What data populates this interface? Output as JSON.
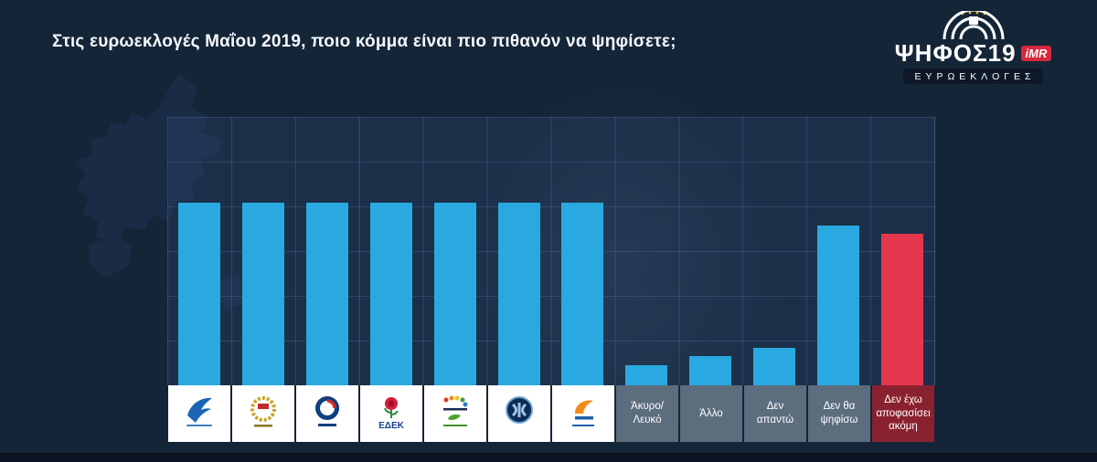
{
  "header": {
    "title": "Στις ευρωεκλογές Μαΐου 2019, ποιο κόμμα είναι πιο πιθανόν να ψηφίσετε;"
  },
  "brand": {
    "name": "ΨΗΦΟΣ",
    "year": "19",
    "imr_label": "iMR",
    "subtitle": "ΕΥΡΩΕΚΛΟΓΕΣ"
  },
  "colors": {
    "background": "#152538",
    "bar_blue": "#29a9e0",
    "bar_red": "#e4374d",
    "cell_white": "#ffffff",
    "cell_gray": "#5c6d7e",
    "cell_red": "#8a2130",
    "brand_red": "#d6283c"
  },
  "chart_data": {
    "type": "bar",
    "title": "Στις ευρωεκλογές Μαΐου 2019, ποιο κόμμα είναι πιο πιθανόν να ψηφίσετε;",
    "xlabel": "",
    "ylabel": "",
    "numeric_axis": false,
    "grid": true,
    "legend": false,
    "values_unit": "percent of plot height (no numeric values shown on chart)",
    "categories": [
      "Δημοκρατικός Συναγερμός (ΔΗΣΥ)",
      "ΑΚΕΛ",
      "ΔΗΚΟ",
      "ΕΔΕΚ",
      "Συμμαχία Πολιτών – Οικολόγοι",
      "ΕΛΑΜ",
      "Δημοκρατική Παράταξη",
      "Άκυρο/Λευκό",
      "Άλλο",
      "Δεν απαντώ",
      "Δεν θα ψηφίσω",
      "Δεν έχω αποφασίσει ακόμη"
    ],
    "values": [
      68,
      68,
      68,
      68,
      68,
      68,
      68,
      7.5,
      11,
      14,
      59.5,
      56.5
    ],
    "columns": [
      {
        "kind": "logo",
        "logo": "disy-bird-logo",
        "bar_color": "#29a9e0",
        "value_pct": 68
      },
      {
        "kind": "logo",
        "logo": "akel-wreath-logo",
        "bar_color": "#29a9e0",
        "value_pct": 68
      },
      {
        "kind": "logo",
        "logo": "diko-emblem-logo",
        "bar_color": "#29a9e0",
        "value_pct": 68
      },
      {
        "kind": "logo",
        "logo": "edek-rose-logo",
        "bar_color": "#29a9e0",
        "value_pct": 68
      },
      {
        "kind": "logo",
        "logo": "symmachia-politon-oikologoi-logo",
        "bar_color": "#29a9e0",
        "value_pct": 68
      },
      {
        "kind": "logo",
        "logo": "elam-emblem-logo",
        "bar_color": "#29a9e0",
        "value_pct": 68
      },
      {
        "kind": "logo",
        "logo": "dimokratiki-parataxi-logo",
        "bar_color": "#29a9e0",
        "value_pct": 68
      },
      {
        "kind": "text",
        "cell": "gray",
        "text": "Άκυρο/\nΛευκό",
        "bar_color": "#29a9e0",
        "value_pct": 7.5
      },
      {
        "kind": "text",
        "cell": "gray",
        "text": "Άλλο",
        "bar_color": "#29a9e0",
        "value_pct": 11
      },
      {
        "kind": "text",
        "cell": "gray",
        "text": "Δεν\nαπαντώ",
        "bar_color": "#29a9e0",
        "value_pct": 14
      },
      {
        "kind": "text",
        "cell": "gray",
        "text": "Δεν θα\nψηφίσω",
        "bar_color": "#29a9e0",
        "value_pct": 59.5
      },
      {
        "kind": "text",
        "cell": "red",
        "text": "Δεν έχω\nαποφασίσει\nακόμη",
        "bar_color": "#e4374d",
        "value_pct": 56.5
      }
    ]
  }
}
